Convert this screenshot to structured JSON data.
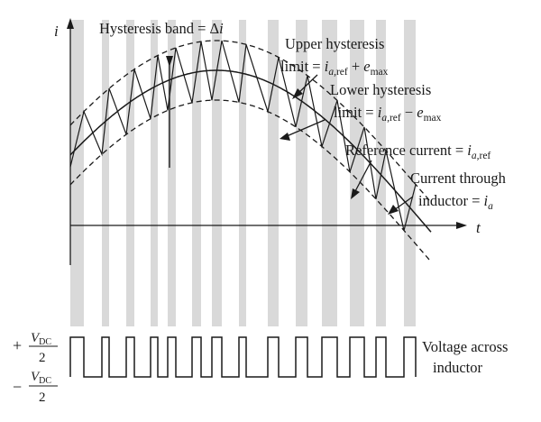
{
  "axes": {
    "y_label": "i",
    "x_label": "t"
  },
  "annotations": {
    "hysteresis_band": {
      "text": "Hysteresis band = ",
      "symbol": "Δ",
      "var": "i"
    },
    "upper_limit": {
      "line1": "Upper hysteresis",
      "prefix": "limit = ",
      "var1": "i",
      "sub1": "a,",
      "sub1b": "ref",
      "op": " + ",
      "var2": "e",
      "sub2": "max"
    },
    "lower_limit": {
      "line1": "Lower hysteresis",
      "prefix": "limit = ",
      "var1": "i",
      "sub1": "a,",
      "sub1b": "ref",
      "op": " − ",
      "var2": "e",
      "sub2": "max"
    },
    "reference_current": {
      "prefix": "Reference current = ",
      "var": "i",
      "sub": "a,",
      "subb": "ref"
    },
    "inductor_current": {
      "line1": "Current through",
      "prefix": "inductor = ",
      "var": "i",
      "sub": "a"
    }
  },
  "voltage": {
    "plus_sign": "+",
    "minus_sign": "−",
    "v_symbol": "V",
    "v_sub": "DC",
    "denominator": "2",
    "caption_line1": "Voltage across",
    "caption_line2": "inductor"
  },
  "colors": {
    "band": "#d9d9d9",
    "ink": "#1a1a1a",
    "background": "#ffffff"
  }
}
